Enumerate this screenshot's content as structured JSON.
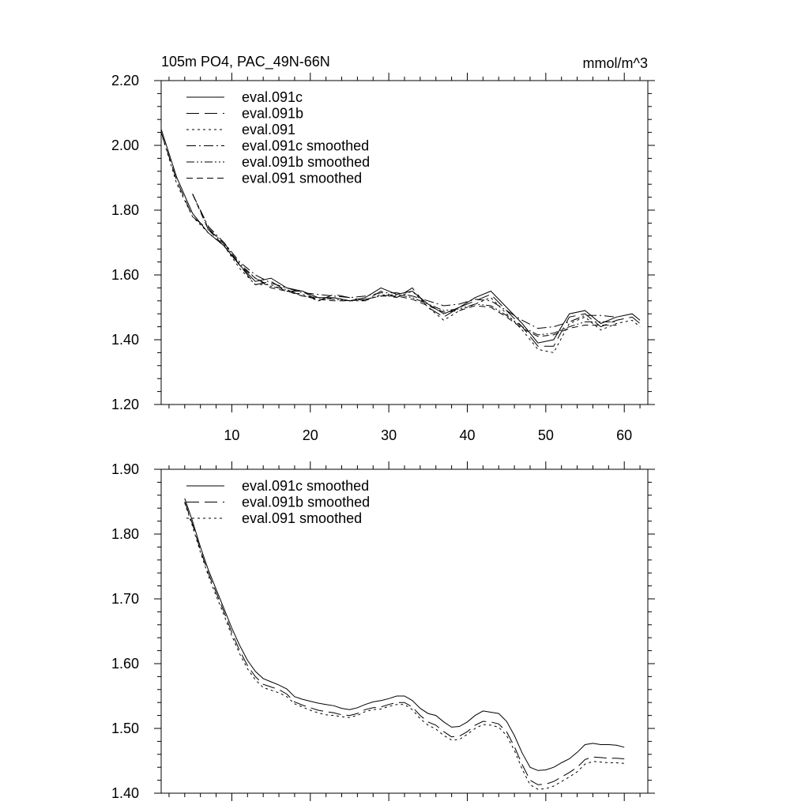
{
  "chart_data": [
    {
      "type": "line",
      "title": "105m PO4, PAC_49N-66N",
      "units": "mmol/m^3",
      "xlim": [
        1,
        63
      ],
      "ylim": [
        1.2,
        2.2
      ],
      "x_ticks": [
        10,
        20,
        30,
        40,
        50,
        60
      ],
      "x_tick_labels": [
        "10",
        "20",
        "30",
        "40",
        "50",
        "60"
      ],
      "y_ticks": [
        1.2,
        1.4,
        1.6,
        1.8,
        2.0,
        2.2
      ],
      "y_tick_labels": [
        "1.20",
        "1.40",
        "1.60",
        "1.80",
        "2.00",
        "2.20"
      ],
      "legend_position": "top-left",
      "series": [
        {
          "name": "eval.091c",
          "style": "solid",
          "x": [
            1,
            3,
            5,
            7,
            9,
            11,
            13,
            15,
            17,
            19,
            21,
            23,
            25,
            27,
            29,
            31,
            33,
            35,
            37,
            39,
            41,
            43,
            45,
            47,
            49,
            51,
            53,
            55,
            57,
            59,
            61,
            62
          ],
          "y": [
            2.05,
            1.9,
            1.79,
            1.73,
            1.69,
            1.63,
            1.58,
            1.59,
            1.56,
            1.55,
            1.53,
            1.53,
            1.52,
            1.53,
            1.56,
            1.54,
            1.55,
            1.51,
            1.48,
            1.5,
            1.53,
            1.55,
            1.5,
            1.45,
            1.39,
            1.4,
            1.48,
            1.49,
            1.45,
            1.47,
            1.48,
            1.46
          ]
        },
        {
          "name": "eval.091b",
          "style": "long-dash",
          "x": [
            1,
            3,
            5,
            7,
            9,
            11,
            13,
            15,
            17,
            19,
            21,
            23,
            25,
            27,
            29,
            31,
            33,
            35,
            37,
            39,
            41,
            43,
            45,
            47,
            49,
            51,
            53,
            55,
            57,
            59,
            61,
            62
          ],
          "y": [
            2.04,
            1.89,
            1.78,
            1.74,
            1.7,
            1.63,
            1.57,
            1.58,
            1.55,
            1.55,
            1.52,
            1.54,
            1.53,
            1.52,
            1.55,
            1.53,
            1.56,
            1.5,
            1.47,
            1.5,
            1.52,
            1.54,
            1.49,
            1.44,
            1.38,
            1.38,
            1.47,
            1.48,
            1.44,
            1.46,
            1.47,
            1.45
          ]
        },
        {
          "name": "eval.091",
          "style": "short-dash",
          "x": [
            1,
            3,
            5,
            7,
            9,
            11,
            13,
            15,
            17,
            19,
            21,
            23,
            25,
            27,
            29,
            31,
            33,
            35,
            37,
            39,
            41,
            43,
            45,
            47,
            49,
            51,
            53,
            55,
            57,
            59,
            61,
            62
          ],
          "y": [
            2.04,
            1.88,
            1.78,
            1.73,
            1.69,
            1.62,
            1.57,
            1.57,
            1.55,
            1.54,
            1.52,
            1.53,
            1.52,
            1.52,
            1.54,
            1.53,
            1.55,
            1.5,
            1.46,
            1.49,
            1.51,
            1.53,
            1.48,
            1.43,
            1.37,
            1.36,
            1.45,
            1.47,
            1.43,
            1.45,
            1.46,
            1.44
          ]
        },
        {
          "name": "eval.091c smoothed",
          "style": "dash-dot",
          "x": [
            5,
            7,
            9,
            11,
            13,
            15,
            17,
            19,
            21,
            23,
            25,
            27,
            29,
            31,
            33,
            35,
            37,
            39,
            41,
            43,
            45,
            47,
            49,
            51,
            53,
            55,
            57,
            59
          ],
          "y": [
            1.85,
            1.75,
            1.7,
            1.64,
            1.6,
            1.575,
            1.56,
            1.545,
            1.54,
            1.535,
            1.53,
            1.535,
            1.545,
            1.545,
            1.535,
            1.52,
            1.505,
            1.51,
            1.525,
            1.52,
            1.49,
            1.46,
            1.435,
            1.44,
            1.455,
            1.475,
            1.475,
            1.47
          ]
        },
        {
          "name": "eval.091b smoothed",
          "style": "dash-dot-dot",
          "x": [
            5,
            7,
            9,
            11,
            13,
            15,
            17,
            19,
            21,
            23,
            25,
            27,
            29,
            31,
            33,
            35,
            37,
            39,
            41,
            43,
            45,
            47,
            49,
            51,
            53,
            55,
            57,
            59
          ],
          "y": [
            1.85,
            1.745,
            1.695,
            1.635,
            1.59,
            1.565,
            1.555,
            1.535,
            1.53,
            1.525,
            1.52,
            1.525,
            1.535,
            1.54,
            1.53,
            1.51,
            1.49,
            1.495,
            1.51,
            1.505,
            1.475,
            1.44,
            1.415,
            1.42,
            1.44,
            1.455,
            1.455,
            1.455
          ]
        },
        {
          "name": "eval.091 smoothed",
          "style": "medium-dash",
          "x": [
            5,
            7,
            9,
            11,
            13,
            15,
            17,
            19,
            21,
            23,
            25,
            27,
            29,
            31,
            33,
            35,
            37,
            39,
            41,
            43,
            45,
            47,
            49,
            51,
            53,
            55,
            57,
            59
          ],
          "y": [
            1.85,
            1.74,
            1.69,
            1.63,
            1.59,
            1.56,
            1.55,
            1.535,
            1.525,
            1.52,
            1.52,
            1.525,
            1.535,
            1.535,
            1.525,
            1.505,
            1.485,
            1.49,
            1.505,
            1.5,
            1.47,
            1.435,
            1.41,
            1.415,
            1.435,
            1.445,
            1.445,
            1.445
          ]
        }
      ]
    },
    {
      "type": "line",
      "xlim": [
        1,
        63
      ],
      "ylim": [
        1.4,
        1.9
      ],
      "x_ticks": [
        10,
        20,
        30,
        40,
        50,
        60
      ],
      "y_ticks": [
        1.4,
        1.5,
        1.6,
        1.7,
        1.8,
        1.9
      ],
      "y_tick_labels": [
        "1.40",
        "1.50",
        "1.60",
        "1.70",
        "1.80",
        "1.90"
      ],
      "legend_position": "top-left",
      "series": [
        {
          "name": "eval.091c smoothed",
          "style": "solid",
          "x": [
            4,
            5,
            6,
            7,
            8,
            9,
            10,
            11,
            12,
            13,
            14,
            15,
            16,
            17,
            18,
            19,
            20,
            21,
            22,
            23,
            24,
            25,
            26,
            27,
            28,
            29,
            30,
            31,
            32,
            33,
            34,
            35,
            36,
            37,
            38,
            39,
            40,
            41,
            42,
            43,
            44,
            45,
            46,
            47,
            48,
            49,
            50,
            51,
            52,
            53,
            54,
            55,
            56,
            57,
            58,
            59,
            60
          ],
          "y": [
            1.855,
            1.82,
            1.78,
            1.745,
            1.715,
            1.685,
            1.655,
            1.628,
            1.605,
            1.588,
            1.577,
            1.572,
            1.567,
            1.561,
            1.549,
            1.545,
            1.542,
            1.539,
            1.537,
            1.535,
            1.531,
            1.529,
            1.532,
            1.537,
            1.541,
            1.543,
            1.546,
            1.55,
            1.55,
            1.543,
            1.531,
            1.523,
            1.52,
            1.51,
            1.502,
            1.503,
            1.51,
            1.52,
            1.527,
            1.525,
            1.523,
            1.511,
            1.489,
            1.462,
            1.44,
            1.435,
            1.436,
            1.44,
            1.447,
            1.453,
            1.463,
            1.475,
            1.477,
            1.475,
            1.475,
            1.474,
            1.471
          ]
        },
        {
          "name": "eval.091b smoothed",
          "style": "long-dash",
          "x": [
            4,
            5,
            6,
            7,
            8,
            9,
            10,
            11,
            12,
            13,
            14,
            15,
            16,
            17,
            18,
            19,
            20,
            21,
            22,
            23,
            24,
            25,
            26,
            27,
            28,
            29,
            30,
            31,
            32,
            33,
            34,
            35,
            36,
            37,
            38,
            39,
            40,
            41,
            42,
            43,
            44,
            45,
            46,
            47,
            48,
            49,
            50,
            51,
            52,
            53,
            54,
            55,
            56,
            57,
            58,
            59,
            60
          ],
          "y": [
            1.85,
            1.815,
            1.775,
            1.74,
            1.71,
            1.68,
            1.648,
            1.62,
            1.597,
            1.58,
            1.568,
            1.564,
            1.56,
            1.553,
            1.541,
            1.536,
            1.532,
            1.528,
            1.526,
            1.524,
            1.521,
            1.52,
            1.523,
            1.529,
            1.532,
            1.533,
            1.537,
            1.54,
            1.54,
            1.533,
            1.52,
            1.51,
            1.505,
            1.495,
            1.487,
            1.488,
            1.495,
            1.505,
            1.511,
            1.51,
            1.507,
            1.495,
            1.472,
            1.444,
            1.42,
            1.413,
            1.414,
            1.418,
            1.425,
            1.432,
            1.44,
            1.452,
            1.456,
            1.455,
            1.454,
            1.454,
            1.453
          ]
        },
        {
          "name": "eval.091 smoothed",
          "style": "short-dash",
          "x": [
            4,
            5,
            6,
            7,
            8,
            9,
            10,
            11,
            12,
            13,
            14,
            15,
            16,
            17,
            18,
            19,
            20,
            21,
            22,
            23,
            24,
            25,
            26,
            27,
            28,
            29,
            30,
            31,
            32,
            33,
            34,
            35,
            36,
            37,
            38,
            39,
            40,
            41,
            42,
            43,
            44,
            45,
            46,
            47,
            48,
            49,
            50,
            51,
            52,
            53,
            54,
            55,
            56,
            57,
            58,
            59,
            60
          ],
          "y": [
            1.848,
            1.812,
            1.772,
            1.736,
            1.705,
            1.675,
            1.643,
            1.615,
            1.592,
            1.575,
            1.563,
            1.559,
            1.555,
            1.549,
            1.538,
            1.533,
            1.528,
            1.524,
            1.521,
            1.52,
            1.518,
            1.517,
            1.52,
            1.526,
            1.529,
            1.53,
            1.534,
            1.537,
            1.537,
            1.529,
            1.515,
            1.505,
            1.499,
            1.489,
            1.482,
            1.483,
            1.491,
            1.5,
            1.506,
            1.505,
            1.502,
            1.489,
            1.466,
            1.437,
            1.413,
            1.406,
            1.407,
            1.411,
            1.418,
            1.425,
            1.433,
            1.445,
            1.449,
            1.448,
            1.447,
            1.447,
            1.446
          ]
        }
      ]
    }
  ],
  "colors": {
    "line": "#000000",
    "background": "#ffffff"
  }
}
